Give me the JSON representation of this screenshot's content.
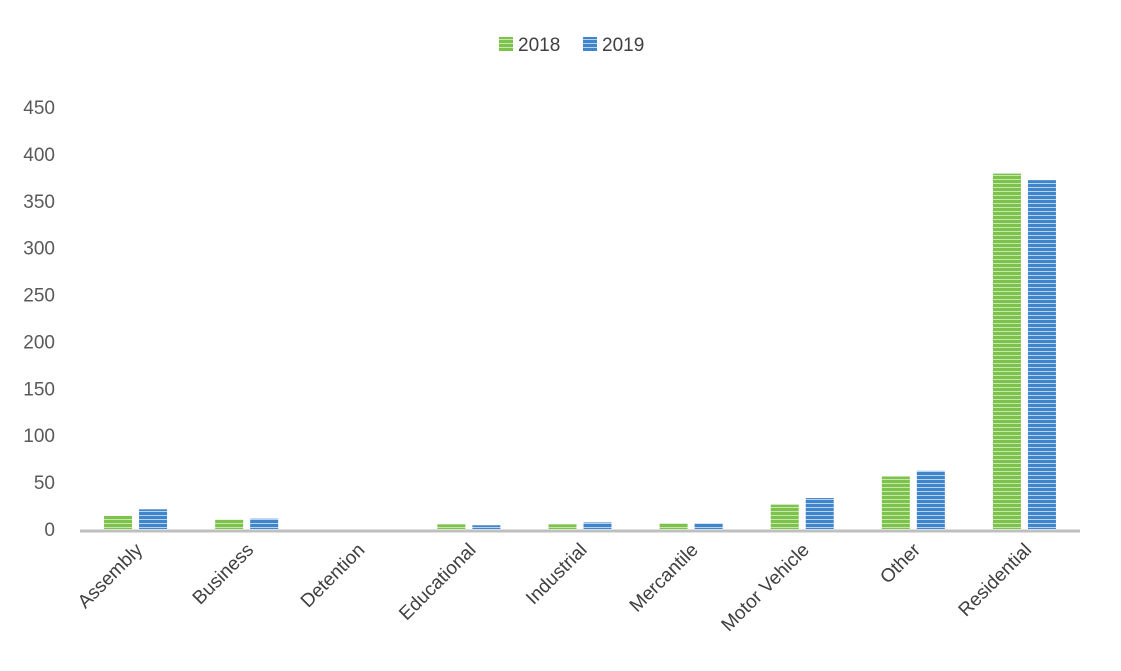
{
  "chart_data": {
    "type": "bar",
    "title": "",
    "xlabel": "",
    "ylabel": "",
    "categories": [
      "Assembly",
      "Business",
      "Detention",
      "Educational",
      "Industrial",
      "Mercantile",
      "Motor Vehicle",
      "Other",
      "Residential"
    ],
    "series": [
      {
        "name": "2018",
        "color": "#7dc24b",
        "values": [
          14,
          10,
          0,
          5,
          5,
          6,
          26,
          56,
          379
        ]
      },
      {
        "name": "2019",
        "color": "#3f85cc",
        "values": [
          21,
          11,
          0,
          4,
          7,
          6,
          33,
          62,
          372
        ]
      }
    ],
    "ylim": [
      0,
      450
    ],
    "yticks": [
      "0",
      "50",
      "100",
      "150",
      "200",
      "250",
      "300",
      "350",
      "400",
      "450"
    ],
    "grid": false,
    "legend": "top-center"
  }
}
